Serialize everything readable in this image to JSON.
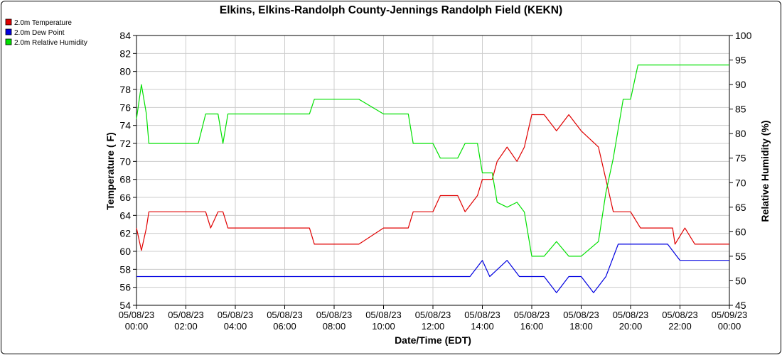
{
  "chart_data": {
    "type": "line",
    "title": "Elkins, Elkins-Randolph County-Jennings Randolph Field (KEKN)",
    "xlabel": "Date/Time (EDT)",
    "ylabel_left": "Temperature ( F)",
    "ylabel_right": "Relative Humidity (%)",
    "ylim_left": [
      54,
      84
    ],
    "ylim_right": [
      45,
      100
    ],
    "xlim_hours": [
      0,
      24
    ],
    "grid": true,
    "legend_position": "top-left",
    "x_ticks": [
      {
        "date": "05/08/23",
        "time": "00:00"
      },
      {
        "date": "05/08/23",
        "time": "02:00"
      },
      {
        "date": "05/08/23",
        "time": "04:00"
      },
      {
        "date": "05/08/23",
        "time": "06:00"
      },
      {
        "date": "05/08/23",
        "time": "08:00"
      },
      {
        "date": "05/08/23",
        "time": "10:00"
      },
      {
        "date": "05/08/23",
        "time": "12:00"
      },
      {
        "date": "05/08/23",
        "time": "14:00"
      },
      {
        "date": "05/08/23",
        "time": "16:00"
      },
      {
        "date": "05/08/23",
        "time": "18:00"
      },
      {
        "date": "05/08/23",
        "time": "20:00"
      },
      {
        "date": "05/08/23",
        "time": "22:00"
      },
      {
        "date": "05/09/23",
        "time": "00:00"
      }
    ],
    "y_ticks_left": [
      54,
      56,
      58,
      60,
      62,
      64,
      66,
      68,
      70,
      72,
      74,
      76,
      78,
      80,
      82,
      84
    ],
    "y_ticks_right": [
      45,
      50,
      55,
      60,
      65,
      70,
      75,
      80,
      85,
      90,
      95,
      100
    ],
    "series": [
      {
        "name": "2.0m Temperature",
        "color": "#e00000",
        "axis": "left",
        "points": [
          [
            0,
            62.6
          ],
          [
            0.2,
            60.1
          ],
          [
            0.4,
            62.6
          ],
          [
            0.5,
            64.4
          ],
          [
            2,
            64.4
          ],
          [
            2.5,
            64.4
          ],
          [
            2.8,
            64.4
          ],
          [
            3,
            62.6
          ],
          [
            3.3,
            64.4
          ],
          [
            3.5,
            64.4
          ],
          [
            3.7,
            62.6
          ],
          [
            4,
            62.6
          ],
          [
            6,
            62.6
          ],
          [
            6.6,
            62.6
          ],
          [
            7,
            62.6
          ],
          [
            7.2,
            60.8
          ],
          [
            8,
            60.8
          ],
          [
            8.7,
            60.8
          ],
          [
            9,
            60.8
          ],
          [
            10,
            62.6
          ],
          [
            11,
            62.6
          ],
          [
            11.2,
            64.4
          ],
          [
            12,
            64.4
          ],
          [
            12.3,
            66.2
          ],
          [
            13,
            66.2
          ],
          [
            13.3,
            64.4
          ],
          [
            13.8,
            66.2
          ],
          [
            14,
            68
          ],
          [
            14.4,
            68
          ],
          [
            14.6,
            70
          ],
          [
            15,
            71.6
          ],
          [
            15.4,
            70
          ],
          [
            15.7,
            71.6
          ],
          [
            16,
            75.2
          ],
          [
            16.5,
            75.2
          ],
          [
            17,
            73.4
          ],
          [
            17.5,
            75.2
          ],
          [
            18,
            73.4
          ],
          [
            18.7,
            71.6
          ],
          [
            19,
            68
          ],
          [
            19.3,
            64.4
          ],
          [
            20,
            64.4
          ],
          [
            20.4,
            62.6
          ],
          [
            21,
            62.6
          ],
          [
            21.7,
            62.6
          ],
          [
            21.8,
            60.8
          ],
          [
            22.2,
            62.6
          ],
          [
            22.6,
            60.8
          ],
          [
            23,
            60.8
          ],
          [
            24,
            60.8
          ]
        ]
      },
      {
        "name": "2.0m Dew Point",
        "color": "#0000e0",
        "axis": "left",
        "points": [
          [
            0,
            57.2
          ],
          [
            6,
            57.2
          ],
          [
            12,
            57.2
          ],
          [
            13.5,
            57.2
          ],
          [
            14,
            59
          ],
          [
            14.3,
            57.2
          ],
          [
            15,
            59
          ],
          [
            15.5,
            57.2
          ],
          [
            16,
            57.2
          ],
          [
            16.5,
            57.2
          ],
          [
            17,
            55.4
          ],
          [
            17.5,
            57.2
          ],
          [
            18,
            57.2
          ],
          [
            18.5,
            55.4
          ],
          [
            19,
            57.2
          ],
          [
            19.5,
            60.8
          ],
          [
            20,
            60.8
          ],
          [
            21,
            60.8
          ],
          [
            21.5,
            60.8
          ],
          [
            22,
            59
          ],
          [
            24,
            59
          ]
        ]
      },
      {
        "name": "2.0m Relative Humidity",
        "color": "#00e000",
        "axis": "right",
        "points": [
          [
            0,
            83
          ],
          [
            0.2,
            90
          ],
          [
            0.4,
            84
          ],
          [
            0.5,
            78
          ],
          [
            2,
            78
          ],
          [
            2.5,
            78
          ],
          [
            2.8,
            84
          ],
          [
            3.3,
            84
          ],
          [
            3.5,
            78
          ],
          [
            3.7,
            84
          ],
          [
            4,
            84
          ],
          [
            6,
            84
          ],
          [
            6.6,
            84
          ],
          [
            7,
            84
          ],
          [
            7.2,
            87
          ],
          [
            8,
            87
          ],
          [
            8.5,
            87
          ],
          [
            9,
            87
          ],
          [
            10,
            84
          ],
          [
            11,
            84
          ],
          [
            11.2,
            78
          ],
          [
            12,
            78
          ],
          [
            12.3,
            75
          ],
          [
            13,
            75
          ],
          [
            13.3,
            78
          ],
          [
            13.8,
            78
          ],
          [
            14,
            72
          ],
          [
            14.4,
            72
          ],
          [
            14.6,
            66
          ],
          [
            15,
            65
          ],
          [
            15.4,
            66
          ],
          [
            15.7,
            64
          ],
          [
            16,
            55
          ],
          [
            16.5,
            55
          ],
          [
            17,
            58
          ],
          [
            17.5,
            55
          ],
          [
            18,
            55
          ],
          [
            18.7,
            58
          ],
          [
            19,
            68
          ],
          [
            19.3,
            75
          ],
          [
            19.7,
            87
          ],
          [
            20,
            87
          ],
          [
            20.3,
            94
          ],
          [
            20.6,
            94
          ],
          [
            21,
            94
          ],
          [
            22,
            94
          ],
          [
            24,
            94
          ]
        ]
      }
    ]
  }
}
